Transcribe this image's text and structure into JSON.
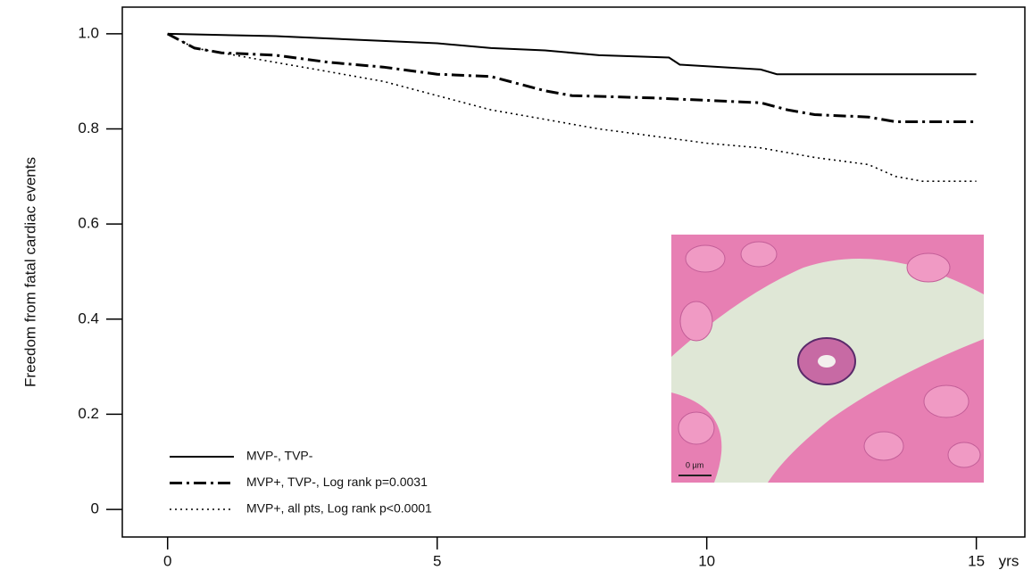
{
  "chart_data": {
    "type": "line",
    "y_label": "Freedom from fatal cardiac events",
    "x_label": "yrs",
    "xlim": [
      -0.84,
      15.9
    ],
    "ylim": [
      -0.058,
      1.056
    ],
    "xticks": [
      0,
      5,
      10,
      15
    ],
    "yticks": [
      {
        "value": 1,
        "label": "1.0"
      },
      0.8,
      0.6,
      0.4,
      0.2,
      0
    ],
    "legend": "lower left",
    "inset_scale_label": "0 µm",
    "series": [
      {
        "name": "MVP-, TVP-",
        "color": "#000000",
        "line_style": "solid",
        "x": [
          0,
          2,
          4,
          5,
          6,
          7,
          8,
          9.3,
          9.5,
          11,
          11.3,
          15
        ],
        "values": [
          1.0,
          0.995,
          0.985,
          0.98,
          0.97,
          0.965,
          0.955,
          0.95,
          0.935,
          0.925,
          0.915,
          0.915
        ]
      },
      {
        "name": "MVP+, TVP-, Log rank p=0.0031",
        "color": "#000000",
        "line_style": "dashdot",
        "x": [
          0,
          0.5,
          1,
          2,
          3,
          4,
          5,
          6,
          6.5,
          7,
          7.5,
          9,
          10,
          11,
          11.5,
          12,
          13,
          13.5,
          15
        ],
        "values": [
          1.0,
          0.97,
          0.96,
          0.955,
          0.94,
          0.93,
          0.915,
          0.91,
          0.895,
          0.88,
          0.87,
          0.865,
          0.86,
          0.855,
          0.84,
          0.83,
          0.825,
          0.815,
          0.815
        ]
      },
      {
        "name": "MVP+, all pts, Log rank p<0.0001",
        "color": "#000000",
        "line_style": "dotted",
        "x": [
          0,
          0.5,
          1,
          2,
          3,
          4,
          5,
          6,
          7,
          7.5,
          8,
          9,
          10,
          11,
          12,
          13,
          13.5,
          14,
          15
        ],
        "values": [
          1.0,
          0.97,
          0.96,
          0.94,
          0.92,
          0.9,
          0.87,
          0.84,
          0.82,
          0.81,
          0.8,
          0.785,
          0.77,
          0.76,
          0.74,
          0.725,
          0.7,
          0.69,
          0.69
        ]
      }
    ]
  }
}
